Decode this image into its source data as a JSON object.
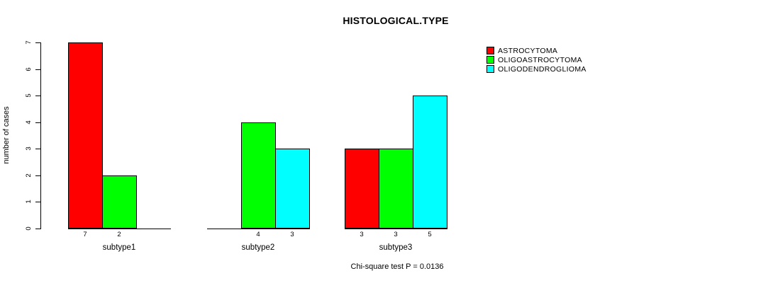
{
  "chart_data": {
    "type": "bar",
    "grouped": true,
    "title": "HISTOLOGICAL.TYPE",
    "ylabel": "number of cases",
    "xlabel": "",
    "categories": [
      "subtype1",
      "subtype2",
      "subtype3"
    ],
    "series": [
      {
        "name": "ASTROCYTOMA",
        "color": "#ff0000",
        "values": [
          7,
          0,
          3
        ]
      },
      {
        "name": "OLIGOASTROCYTOMA",
        "color": "#00ff00",
        "values": [
          2,
          4,
          3
        ]
      },
      {
        "name": "OLIGODENDROGLIOMA",
        "color": "#00ffff",
        "values": [
          0,
          3,
          5
        ]
      }
    ],
    "bar_value_labels": [
      "7",
      "2",
      "4",
      "3",
      "3",
      "3",
      "5"
    ],
    "ylim": [
      0,
      7
    ],
    "yticks": [
      "0",
      "1",
      "2",
      "3",
      "4",
      "5",
      "6",
      "7"
    ],
    "grid": false,
    "legend_position": "top-right",
    "footnote": "Chi-square test P = 0.0136",
    "axis_color": "#000000",
    "background_color": "#ffffff"
  }
}
